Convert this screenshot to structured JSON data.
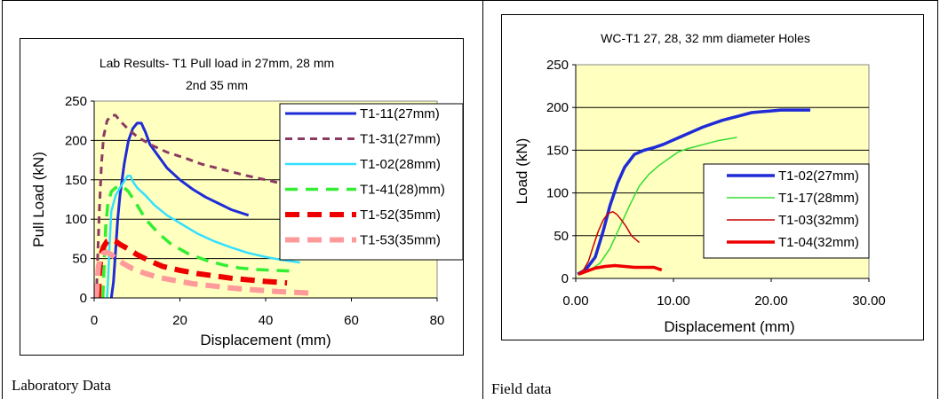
{
  "captions": {
    "left": "Laboratory Data",
    "right": "Field data"
  },
  "chart_data": [
    {
      "type": "line",
      "title": "Lab Results- T1 Pull load in 27mm, 28 mm",
      "subtitle": "2nd 35 mm",
      "xlabel": "Displacement (mm)",
      "ylabel": "Pull Load (kN)",
      "xlim": [
        0,
        80
      ],
      "ylim": [
        0,
        250
      ],
      "xticks": [
        "0",
        "20",
        "40",
        "60",
        "80"
      ],
      "yticks": [
        "0",
        "50",
        "100",
        "150",
        "200",
        "250"
      ],
      "grid": "horizontal",
      "legend": "top-right",
      "plot_background": "#ffffc0",
      "series": [
        {
          "name": "T1-11(27mm)",
          "color": "#1f2bd6",
          "dash": "solid",
          "width": 3,
          "points": [
            [
              4,
              0
            ],
            [
              4.5,
              20
            ],
            [
              5,
              60
            ],
            [
              5.5,
              100
            ],
            [
              6,
              130
            ],
            [
              6.5,
              150
            ],
            [
              7,
              170
            ],
            [
              8,
              200
            ],
            [
              9,
              215
            ],
            [
              10,
              222
            ],
            [
              11,
              222
            ],
            [
              12,
              210
            ],
            [
              13,
              195
            ],
            [
              15,
              180
            ],
            [
              17,
              165
            ],
            [
              20,
              150
            ],
            [
              23,
              138
            ],
            [
              26,
              128
            ],
            [
              29,
              120
            ],
            [
              32,
              112
            ],
            [
              36,
              105
            ]
          ]
        },
        {
          "name": "T1-31(27mm)",
          "color": "#8b3a62",
          "dash": "8,6",
          "width": 3,
          "points": [
            [
              0.5,
              0
            ],
            [
              0.8,
              50
            ],
            [
              1.2,
              110
            ],
            [
              1.7,
              170
            ],
            [
              2.2,
              205
            ],
            [
              3,
              225
            ],
            [
              4,
              232
            ],
            [
              5,
              232
            ],
            [
              6,
              225
            ],
            [
              8,
              214
            ],
            [
              10,
              205
            ],
            [
              13,
              195
            ],
            [
              17,
              185
            ],
            [
              21,
              178
            ],
            [
              25,
              170
            ],
            [
              30,
              163
            ],
            [
              35,
              156
            ],
            [
              40,
              150
            ],
            [
              44,
              145
            ],
            [
              47,
              140
            ]
          ]
        },
        {
          "name": "T1-02(28mm)",
          "color": "#33e0ff",
          "dash": "solid",
          "width": 2.5,
          "points": [
            [
              3,
              0
            ],
            [
              3.3,
              30
            ],
            [
              3.6,
              70
            ],
            [
              4,
              110
            ],
            [
              5,
              130
            ],
            [
              6,
              140
            ],
            [
              7,
              148
            ],
            [
              7.8,
              155
            ],
            [
              8.5,
              155
            ],
            [
              9,
              148
            ],
            [
              10,
              140
            ],
            [
              12,
              130
            ],
            [
              14,
              118
            ],
            [
              17,
              105
            ],
            [
              20,
              95
            ],
            [
              24,
              82
            ],
            [
              28,
              72
            ],
            [
              32,
              64
            ],
            [
              36,
              57
            ],
            [
              40,
              52
            ],
            [
              44,
              48
            ],
            [
              48,
              45
            ]
          ]
        },
        {
          "name": "T1-41(28)mm)",
          "color": "#33ee33",
          "dash": "14,9",
          "width": 3.5,
          "points": [
            [
              2,
              0
            ],
            [
              2.3,
              40
            ],
            [
              2.7,
              90
            ],
            [
              3.2,
              120
            ],
            [
              4,
              135
            ],
            [
              5,
              140
            ],
            [
              6,
              142
            ],
            [
              7,
              140
            ],
            [
              8,
              135
            ],
            [
              10,
              118
            ],
            [
              12,
              100
            ],
            [
              15,
              82
            ],
            [
              18,
              68
            ],
            [
              22,
              56
            ],
            [
              26,
              48
            ],
            [
              30,
              42
            ],
            [
              34,
              38
            ],
            [
              38,
              36
            ],
            [
              42,
              35
            ],
            [
              46,
              34
            ]
          ]
        },
        {
          "name": "T1-52(35mm)",
          "color": "#ee0000",
          "dash": "16,9",
          "width": 6,
          "points": [
            [
              1,
              0
            ],
            [
              1.2,
              30
            ],
            [
              1.6,
              55
            ],
            [
              2.2,
              65
            ],
            [
              3,
              72
            ],
            [
              4,
              74
            ],
            [
              5,
              72
            ],
            [
              6,
              68
            ],
            [
              8,
              62
            ],
            [
              10,
              55
            ],
            [
              13,
              47
            ],
            [
              16,
              40
            ],
            [
              20,
              35
            ],
            [
              24,
              31
            ],
            [
              28,
              28
            ],
            [
              32,
              25
            ],
            [
              36,
              23
            ],
            [
              40,
              21
            ],
            [
              45,
              19
            ]
          ]
        },
        {
          "name": "T1-53(35mm)",
          "color": "#ff9a9a",
          "dash": "16,9",
          "width": 6,
          "points": [
            [
              0.5,
              0
            ],
            [
              0.7,
              20
            ],
            [
              1,
              40
            ],
            [
              1.5,
              52
            ],
            [
              2.2,
              57
            ],
            [
              3,
              58
            ],
            [
              4,
              55
            ],
            [
              5,
              50
            ],
            [
              7,
              43
            ],
            [
              9,
              37
            ],
            [
              12,
              31
            ],
            [
              15,
              26
            ],
            [
              19,
              22
            ],
            [
              23,
              18
            ],
            [
              28,
              15
            ],
            [
              33,
              12
            ],
            [
              38,
              10
            ],
            [
              43,
              8
            ],
            [
              47,
              7
            ],
            [
              51,
              6
            ]
          ]
        }
      ]
    },
    {
      "type": "line",
      "title": "WC-T1 27, 28, 32 mm diameter  Holes",
      "xlabel": "Displacement (mm)",
      "ylabel": "Load (kN)",
      "xlim": [
        0,
        30
      ],
      "ylim": [
        0,
        250
      ],
      "xticks": [
        "0.00",
        "10.00",
        "20.00",
        "30.00"
      ],
      "yticks": [
        "0",
        "50",
        "100",
        "150",
        "200",
        "250"
      ],
      "grid": "horizontal",
      "legend": "right",
      "plot_background": "#ffffc0",
      "series": [
        {
          "name": "T1-02(27mm)",
          "color": "#1f2bd6",
          "width": 3.5,
          "points": [
            [
              0.2,
              5
            ],
            [
              1,
              10
            ],
            [
              2,
              25
            ],
            [
              2.8,
              55
            ],
            [
              3.5,
              85
            ],
            [
              4.3,
              112
            ],
            [
              5,
              130
            ],
            [
              6,
              145
            ],
            [
              7,
              150
            ],
            [
              8,
              153
            ],
            [
              9,
              157
            ],
            [
              10,
              162
            ],
            [
              11,
              167
            ],
            [
              12,
              172
            ],
            [
              13,
              177
            ],
            [
              14,
              181
            ],
            [
              15,
              185
            ],
            [
              16,
              188
            ],
            [
              17,
              191
            ],
            [
              18,
              194
            ],
            [
              19,
              195
            ],
            [
              20,
              196
            ],
            [
              21,
              197
            ],
            [
              22,
              197
            ],
            [
              23,
              197
            ],
            [
              24,
              197
            ]
          ]
        },
        {
          "name": "T1-17(28mm)",
          "color": "#33dd33",
          "width": 1.5,
          "points": [
            [
              0.3,
              5
            ],
            [
              1.5,
              10
            ],
            [
              2.5,
              18
            ],
            [
              3.5,
              35
            ],
            [
              4.5,
              60
            ],
            [
              5.5,
              85
            ],
            [
              6.5,
              108
            ],
            [
              7.5,
              122
            ],
            [
              8.5,
              132
            ],
            [
              9.5,
              140
            ],
            [
              10.5,
              148
            ],
            [
              11.5,
              152
            ],
            [
              12.5,
              155
            ],
            [
              13.5,
              158
            ],
            [
              14.5,
              161
            ],
            [
              15.5,
              163
            ],
            [
              16.5,
              165
            ]
          ]
        },
        {
          "name": "T1-03(32mm)",
          "color": "#cc0000",
          "width": 1.5,
          "points": [
            [
              0.3,
              5
            ],
            [
              0.8,
              10
            ],
            [
              1.3,
              20
            ],
            [
              1.8,
              38
            ],
            [
              2.3,
              55
            ],
            [
              2.8,
              68
            ],
            [
              3.3,
              76
            ],
            [
              3.8,
              78
            ],
            [
              4.2,
              75
            ],
            [
              4.7,
              68
            ],
            [
              5.2,
              60
            ],
            [
              5.7,
              50
            ],
            [
              6.2,
              45
            ],
            [
              6.5,
              42
            ]
          ]
        },
        {
          "name": "T1-04(32mm)",
          "color": "#ee0000",
          "width": 3.5,
          "points": [
            [
              0.3,
              5
            ],
            [
              1,
              8
            ],
            [
              2,
              12
            ],
            [
              3,
              14
            ],
            [
              4,
              15
            ],
            [
              5,
              14
            ],
            [
              6,
              13
            ],
            [
              7,
              13
            ],
            [
              8,
              13
            ],
            [
              8.5,
              11
            ],
            [
              8.8,
              10
            ]
          ]
        }
      ]
    }
  ]
}
